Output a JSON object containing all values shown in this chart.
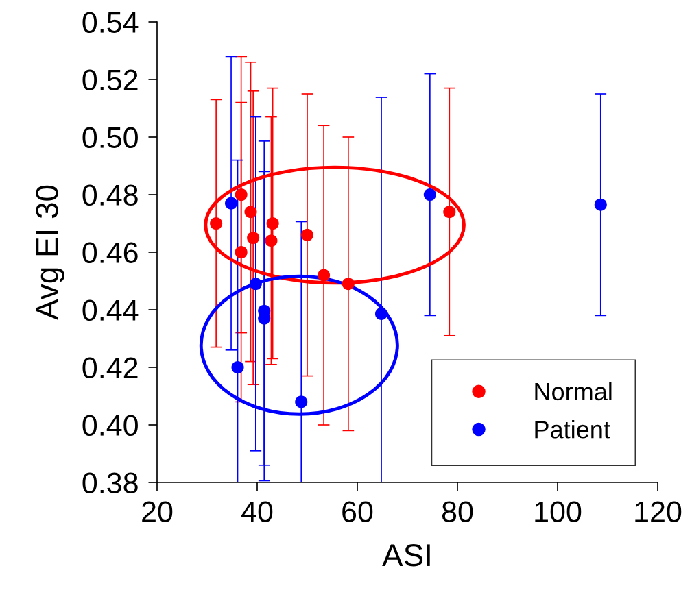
{
  "chart_data": {
    "type": "scatter",
    "xlabel": "ASI",
    "ylabel": "Avg EI 30",
    "xlim": [
      20,
      120
    ],
    "xticks": [
      20,
      40,
      60,
      80,
      100,
      120
    ],
    "ylim": [
      0.38,
      0.54
    ],
    "yticks": [
      0.38,
      {
        "value": 0.4,
        "label": "0.40"
      },
      0.42,
      0.44,
      0.46,
      0.48,
      {
        "value": 0.5,
        "label": "0.50"
      },
      0.52,
      0.54
    ],
    "grid": false,
    "legend": "bottom right",
    "marker": "circle",
    "series": [
      {
        "name": "Normal",
        "color": "#ff0000",
        "x": [
          31.8,
          36.8,
          36.8,
          38.7,
          39.2,
          43.1,
          42.8,
          50.0,
          53.3,
          58.2,
          78.4
        ],
        "values": [
          0.47,
          0.48,
          0.46,
          0.474,
          0.465,
          0.47,
          0.464,
          0.466,
          0.452,
          0.449,
          0.474
        ],
        "errors": [
          0.043,
          0.048,
          0.052,
          0.052,
          0.051,
          0.047,
          0.043,
          0.049,
          0.052,
          0.051,
          0.043
        ]
      },
      {
        "name": "Patient",
        "color": "#0000ff",
        "x": [
          34.8,
          36.1,
          39.7,
          41.4,
          41.4,
          48.8,
          64.8,
          74.5,
          108.6
        ],
        "values": [
          0.477,
          0.42,
          0.449,
          0.4396,
          0.437,
          0.408,
          0.4386,
          0.48,
          0.4765
        ],
        "errors": [
          0.051,
          [
            0.38,
            0.492
          ],
          0.058,
          0.059,
          0.051,
          [
            0.38,
            0.4706
          ],
          [
            0.38,
            0.5138
          ],
          0.042,
          0.0385
        ]
      }
    ]
  }
}
